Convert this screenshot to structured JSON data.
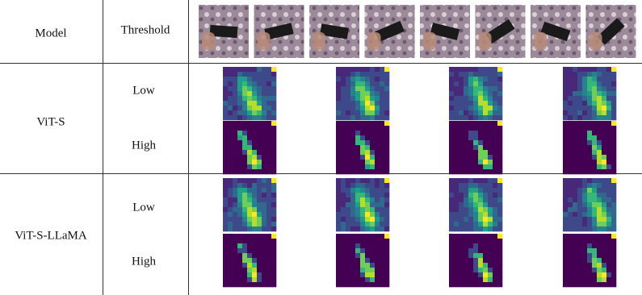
{
  "header": {
    "model": "Model",
    "threshold": "Threshold"
  },
  "rows": [
    {
      "model": "ViT-S",
      "thresholds": [
        "Low",
        "High"
      ]
    },
    {
      "model": "ViT-S-LLaMA",
      "thresholds": [
        "Low",
        "High"
      ]
    }
  ]
}
